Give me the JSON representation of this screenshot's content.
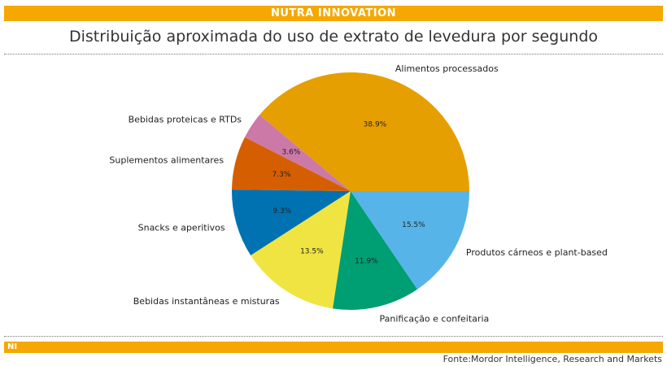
{
  "header": {
    "brand": "NUTRA INNOVATION"
  },
  "title": "Distribuição aproximada do uso de extrato de levedura por segundo",
  "footer": {
    "logo": "NI",
    "source": "Fonte:Mordor Intelligence, Research and Markets"
  },
  "chart_data": {
    "type": "pie",
    "title": "Distribuição aproximada do uso de extrato de levedura por segundo",
    "labels": [
      "Alimentos processados",
      "Bebidas proteicas e RTDs",
      "Suplementos alimentares",
      "Snacks e aperitivos",
      "Bebidas instantâneas e misturas",
      "Panificação e confeitaria",
      "Produtos cárneos e plant-based"
    ],
    "values": [
      38.9,
      3.6,
      7.3,
      9.3,
      13.5,
      11.9,
      15.5
    ],
    "value_labels": [
      "38.9%",
      "3.6%",
      "7.3%",
      "9.3%",
      "13.5%",
      "11.9%",
      "15.5%"
    ],
    "colors": [
      "#e69f00",
      "#cc79a7",
      "#d55e00",
      "#0072b2",
      "#f0e442",
      "#009e73",
      "#56b4e9"
    ]
  }
}
